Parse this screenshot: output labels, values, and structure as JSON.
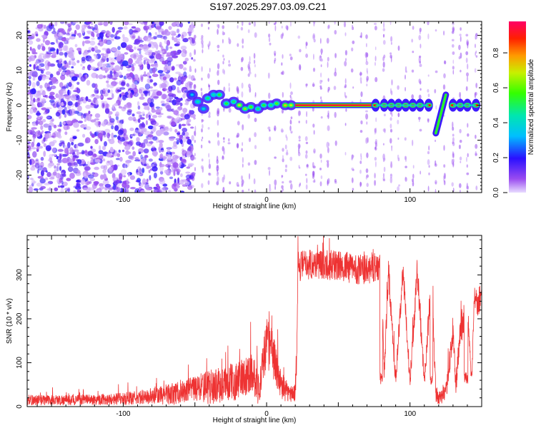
{
  "title": "S197.2025.297.03.09.C21",
  "charts": [
    {
      "type": "heatmap",
      "xlabel": "Height of straight line (km)",
      "ylabel": "Frequency (Hz)",
      "xlim": [
        -167,
        150
      ],
      "ylim": [
        -25,
        24
      ],
      "xticks": [
        -100,
        0,
        100
      ],
      "yticks": [
        20,
        10,
        0,
        -10,
        -20
      ],
      "colorbar": {
        "label": "Normalized spectral amplitude",
        "range": [
          0,
          0.98
        ],
        "ticks": [
          "0.0",
          "0.2",
          "0.4",
          "0.6",
          "0.8"
        ],
        "tick_values": [
          0.0,
          0.2,
          0.4,
          0.6,
          0.8
        ]
      },
      "noise_region_x": [
        -167,
        -53
      ],
      "signal_line": {
        "frequency": 0,
        "x_start": 20,
        "x_end": 75,
        "amplitude": 0.95
      },
      "signal_blobs": [
        {
          "x": -52,
          "f": 3,
          "a": 0.35
        },
        {
          "x": -48,
          "f": 1,
          "a": 0.45
        },
        {
          "x": -44,
          "f": -1,
          "a": 0.4
        },
        {
          "x": -41,
          "f": 2,
          "a": 0.5
        },
        {
          "x": -37,
          "f": 3,
          "a": 0.45
        },
        {
          "x": -33,
          "f": 3,
          "a": 0.55
        },
        {
          "x": -28,
          "f": 0.5,
          "a": 0.55
        },
        {
          "x": -23,
          "f": 1,
          "a": 0.5
        },
        {
          "x": -19,
          "f": 0,
          "a": 0.7
        },
        {
          "x": -15,
          "f": -1,
          "a": 0.65
        },
        {
          "x": -11,
          "f": -0.5,
          "a": 0.6
        },
        {
          "x": -6,
          "f": -1,
          "a": 0.5
        },
        {
          "x": -2,
          "f": 0,
          "a": 0.55
        },
        {
          "x": 3,
          "f": 0,
          "a": 0.5
        },
        {
          "x": 7,
          "f": 0.5,
          "a": 0.6
        },
        {
          "x": 13,
          "f": 0,
          "a": 0.75
        },
        {
          "x": 17,
          "f": 0,
          "a": 0.7
        }
      ],
      "pulses_x": [
        76,
        82,
        87,
        92,
        97,
        102,
        107,
        113,
        130,
        135,
        140,
        146
      ],
      "pulse_amplitude": 0.9,
      "chirp": {
        "x_start": 118,
        "f_start": -8,
        "x_end": 125,
        "f_end": 3,
        "amplitude": 0.55
      }
    },
    {
      "type": "line",
      "xlabel": "Height of straight line (km)",
      "ylabel": "SNR (10 * v/v)",
      "xlim": [
        -167,
        150
      ],
      "ylim": [
        0,
        390
      ],
      "xticks": [
        -100,
        0,
        100
      ],
      "yticks": [
        0,
        100,
        200,
        300
      ],
      "color": "#ee3333",
      "envelope": {
        "x": [
          -167,
          -130,
          -100,
          -80,
          -70,
          -60,
          -50,
          -40,
          -30,
          -20,
          -15,
          -10,
          -5,
          0,
          5,
          10,
          15,
          20,
          21,
          22,
          30,
          40,
          50,
          60,
          70,
          75,
          80,
          82,
          85,
          90,
          95,
          100,
          105,
          110,
          115,
          118,
          120,
          125,
          130,
          132,
          135,
          140,
          143,
          145,
          147,
          150
        ],
        "mean": [
          15,
          15,
          18,
          22,
          28,
          32,
          40,
          45,
          50,
          60,
          70,
          80,
          40,
          150,
          110,
          50,
          30,
          30,
          140,
          320,
          325,
          325,
          320,
          315,
          310,
          320,
          310,
          70,
          310,
          60,
          310,
          60,
          305,
          60,
          290,
          30,
          20,
          30,
          170,
          40,
          175,
          220,
          60,
          260,
          230,
          260
        ],
        "noise": [
          12,
          12,
          14,
          18,
          25,
          25,
          30,
          40,
          40,
          45,
          45,
          50,
          40,
          60,
          50,
          35,
          20,
          20,
          60,
          35,
          35,
          35,
          35,
          35,
          35,
          35,
          35,
          20,
          35,
          20,
          35,
          20,
          35,
          20,
          40,
          20,
          15,
          20,
          40,
          20,
          40,
          40,
          20,
          30,
          30,
          30
        ]
      },
      "dropouts": [
        [
          79,
          83
        ],
        [
          89,
          91
        ],
        [
          99,
          100
        ],
        [
          108,
          110
        ],
        [
          114,
          120
        ],
        [
          126,
          131
        ],
        [
          136,
          141
        ],
        [
          142,
          144
        ]
      ]
    }
  ],
  "colors": {
    "text": "#000000",
    "axis": "#000000",
    "line": "#ee3333"
  }
}
